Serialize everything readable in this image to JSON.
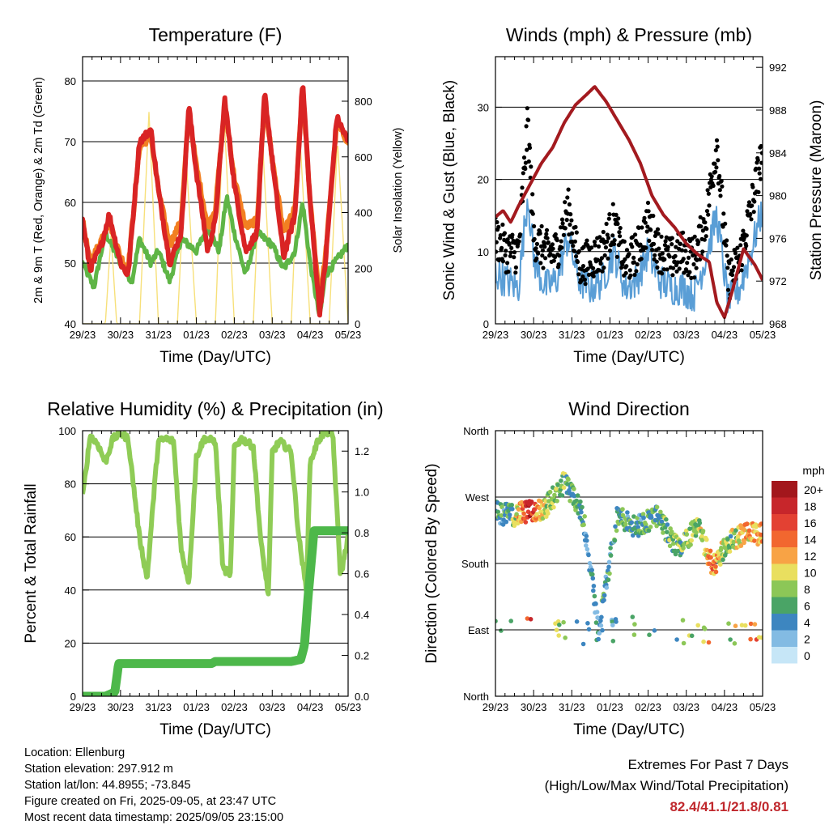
{
  "info": {
    "location": "Location: Ellenburg",
    "elevation": "Station elevation: 297.912 m",
    "latlon": "Station lat/lon: 44.8955; -73.845",
    "created": "Figure created on Fri, 2025-09-05, at 23:47 UTC",
    "latest": "Most recent data timestamp: 2025/09/05 23:15:00"
  },
  "extremes": {
    "title": "Extremes For Past 7 Days",
    "subtitle": "(High/Low/Max Wind/Total Precipitation)",
    "values": "82.4/41.1/21.8/0.81"
  },
  "colors": {
    "temp2m": "#d92424",
    "temp9m": "#f28022",
    "dewpoint": "#5fb546",
    "solar": "#f7e07a",
    "wind": "#5a9ed6",
    "gust": "#000000",
    "pressure": "#a31a1f",
    "rh": "#8fcc56",
    "precip": "#4db84a"
  },
  "chart_data": [
    {
      "id": "temperature",
      "type": "line",
      "title": "Temperature (F)",
      "xlabel": "Time (Day/UTC)",
      "ylabel": "2m & 9m T (Red, Orange) & 2m Td (Green)",
      "y2label": "Solar Insolation (Yellow)",
      "x_ticks": [
        "29/23",
        "30/23",
        "31/23",
        "01/23",
        "02/23",
        "03/23",
        "04/23",
        "05/23"
      ],
      "ylim": [
        40,
        84
      ],
      "y_ticks": [
        40,
        50,
        60,
        70,
        80
      ],
      "y2lim": [
        0,
        960
      ],
      "y2_ticks": [
        0,
        200,
        400,
        600,
        800
      ],
      "grid_y": [
        50,
        60,
        70,
        80
      ],
      "series": [
        {
          "key": "temp2m",
          "days": [
            0,
            0.2,
            0.5,
            0.7,
            1,
            1.2,
            1.5,
            1.8,
            2,
            2.3,
            2.6,
            2.8,
            3,
            3.3,
            3.5,
            3.75,
            4,
            4.3,
            4.6,
            4.8,
            5,
            5.3,
            5.6,
            5.8,
            6,
            6.25,
            6.4,
            6.7,
            7
          ],
          "values": [
            57,
            49,
            53,
            58,
            50,
            48,
            70,
            72,
            62,
            50,
            55,
            76,
            65,
            52,
            57,
            77,
            63,
            52,
            55,
            78,
            67,
            51,
            58,
            80,
            60,
            42,
            50,
            74,
            70
          ]
        },
        {
          "key": "temp9m",
          "days": [
            0,
            0.2,
            0.5,
            0.7,
            1,
            1.2,
            1.5,
            1.8,
            2,
            2.3,
            2.6,
            2.8,
            3,
            3.3,
            3.5,
            3.75,
            4,
            4.3,
            4.6,
            4.8,
            5,
            5.3,
            5.6,
            5.8,
            6,
            6.25,
            6.4,
            6.7,
            7
          ],
          "values": [
            57,
            50,
            54,
            57,
            51,
            49,
            69,
            71,
            62,
            53,
            57,
            75,
            66,
            56,
            59,
            76,
            64,
            56,
            57,
            77,
            67,
            55,
            59,
            79,
            60,
            44,
            51,
            73,
            70
          ]
        },
        {
          "key": "dewpoint",
          "days": [
            0,
            0.3,
            0.6,
            1,
            1.3,
            1.5,
            1.8,
            2,
            2.3,
            2.6,
            3,
            3.3,
            3.6,
            3.8,
            4,
            4.3,
            4.6,
            5,
            5.3,
            5.6,
            5.8,
            6,
            6.25,
            6.4,
            7
          ],
          "values": [
            50,
            46,
            55,
            50,
            47,
            54,
            50,
            52,
            47,
            54,
            52,
            56,
            52,
            61,
            55,
            48,
            55,
            53,
            49,
            52,
            60,
            50,
            41,
            48,
            53
          ]
        },
        {
          "key": "solar",
          "axis": "y2",
          "days": [
            0,
            0.6,
            0.75,
            0.9,
            1.0,
            1.5,
            1.75,
            2.0,
            2.5,
            2.72,
            3.0,
            3.5,
            3.72,
            4.0,
            4.5,
            4.72,
            5.0,
            5.5,
            5.72,
            6.0,
            6.5,
            6.72,
            7.0
          ],
          "values": [
            0,
            0,
            320,
            0,
            0,
            0,
            760,
            0,
            0,
            620,
            0,
            0,
            780,
            0,
            0,
            720,
            0,
            0,
            700,
            0,
            0,
            660,
            0
          ]
        }
      ]
    },
    {
      "id": "winds",
      "type": "scatter",
      "title": "Winds (mph) & Pressure (mb)",
      "xlabel": "Time (Day/UTC)",
      "ylabel": "Sonic Wind & Gust (Blue, Black)",
      "y2label": "Station Pressure (Maroon)",
      "x_ticks": [
        "29/23",
        "30/23",
        "31/23",
        "01/23",
        "02/23",
        "03/23",
        "04/23",
        "05/23"
      ],
      "ylim": [
        0,
        37
      ],
      "y_ticks": [
        0,
        10,
        20,
        30
      ],
      "y2lim": [
        968,
        993
      ],
      "y2_ticks": [
        968,
        972,
        976,
        980,
        984,
        988,
        992
      ],
      "grid_y": [
        10,
        20,
        30
      ],
      "series": [
        {
          "key": "pressure",
          "axis": "y2",
          "days": [
            0,
            0.2,
            0.4,
            0.6,
            0.9,
            1.2,
            1.5,
            1.8,
            2.1,
            2.4,
            2.6,
            2.9,
            3.2,
            3.5,
            3.8,
            4.1,
            4.4,
            4.7,
            5.0,
            5.3,
            5.6,
            5.8,
            6.0,
            6.2,
            6.5,
            6.8,
            7.0
          ],
          "values": [
            978,
            978.6,
            977.5,
            979,
            981,
            983,
            984.5,
            986.8,
            988.5,
            989.5,
            990.2,
            988.8,
            987,
            985.2,
            983,
            980,
            978.2,
            977,
            975.5,
            974.5,
            973.8,
            970,
            968.6,
            971,
            975,
            973.5,
            972.1
          ]
        },
        {
          "key": "wind",
          "days": [
            0,
            0.3,
            0.6,
            0.85,
            1.0,
            1.3,
            1.6,
            1.9,
            2.2,
            2.5,
            2.8,
            3.1,
            3.4,
            3.7,
            4.0,
            4.3,
            4.6,
            4.9,
            5.2,
            5.5,
            5.8,
            6.1,
            6.4,
            6.7,
            7.0
          ],
          "values": [
            7,
            6,
            5,
            18,
            9,
            5,
            6,
            12,
            6,
            5,
            6,
            10,
            5,
            6,
            10,
            6,
            5,
            5,
            4,
            9,
            15,
            3,
            5,
            10,
            16
          ]
        },
        {
          "key": "gust",
          "days": [
            0,
            0.3,
            0.6,
            0.85,
            1.0,
            1.3,
            1.6,
            1.9,
            2.2,
            2.5,
            2.8,
            3.1,
            3.4,
            3.7,
            4.0,
            4.3,
            4.6,
            4.9,
            5.2,
            5.5,
            5.8,
            6.1,
            6.4,
            6.7,
            7.0
          ],
          "values": [
            12,
            10,
            10,
            28,
            12,
            10,
            10,
            16,
            8,
            9,
            10,
            14,
            8,
            10,
            14,
            10,
            9,
            10,
            9,
            14,
            25,
            6,
            9,
            16,
            24
          ]
        }
      ]
    },
    {
      "id": "humidity",
      "type": "line",
      "title": "Relative Humidity (%) & Precipitation (in)",
      "xlabel": "Time (Day/UTC)",
      "ylabel": "Percent & Total Rainfall",
      "x_ticks": [
        "29/23",
        "30/23",
        "31/23",
        "01/23",
        "02/23",
        "03/23",
        "04/23",
        "05/23"
      ],
      "ylim": [
        0,
        100
      ],
      "y_ticks": [
        0,
        20,
        40,
        60,
        80,
        100
      ],
      "y2lim": [
        0,
        1.3
      ],
      "y2_ticks": [
        "0.0",
        "0.2",
        "0.4",
        "0.6",
        "0.8",
        "1.0",
        "1.2"
      ],
      "grid_y": [
        20,
        40,
        60,
        80
      ],
      "series": [
        {
          "key": "rh",
          "days": [
            0,
            0.2,
            0.4,
            0.6,
            0.8,
            1.0,
            1.2,
            1.5,
            1.7,
            1.9,
            2.0,
            2.2,
            2.4,
            2.6,
            2.8,
            3.0,
            3.2,
            3.5,
            3.7,
            3.9,
            4.0,
            4.2,
            4.5,
            4.7,
            4.9,
            5.0,
            5.2,
            5.5,
            5.7,
            5.9,
            6.0,
            6.2,
            6.4,
            6.6,
            6.8,
            7.0
          ],
          "values": [
            75,
            98,
            95,
            88,
            97,
            99,
            97,
            60,
            44,
            80,
            96,
            97,
            96,
            55,
            43,
            90,
            97,
            96,
            48,
            46,
            94,
            97,
            94,
            58,
            38,
            92,
            96,
            92,
            60,
            40,
            88,
            96,
            100,
            98,
            45,
            60
          ]
        },
        {
          "key": "precip",
          "axis": "y2",
          "days": [
            0,
            0.6,
            0.85,
            0.95,
            1.2,
            3.4,
            3.5,
            5.5,
            5.75,
            5.85,
            5.95,
            6.0,
            6.1,
            7.0
          ],
          "values": [
            0,
            0,
            0.02,
            0.16,
            0.16,
            0.16,
            0.17,
            0.17,
            0.18,
            0.25,
            0.5,
            0.6,
            0.81,
            0.81
          ]
        }
      ]
    },
    {
      "id": "wind-direction",
      "type": "scatter",
      "title": "Wind Direction",
      "xlabel": "Time (Day/UTC)",
      "ylabel": "Direction (Colored By Speed)",
      "x_ticks": [
        "29/23",
        "30/23",
        "31/23",
        "01/23",
        "02/23",
        "03/23",
        "04/23",
        "05/23"
      ],
      "ylim": [
        0,
        360
      ],
      "y_tick_labels": [
        "North",
        "East",
        "South",
        "West",
        "North"
      ],
      "y_tick_values": [
        0,
        90,
        180,
        270,
        360
      ],
      "grid_y": [
        90,
        180,
        270
      ],
      "legend": {
        "title": "mph",
        "placement": "right",
        "labels": [
          "20+",
          "18",
          "16",
          "14",
          "12",
          "10",
          "8",
          "6",
          "4",
          "2",
          "0"
        ],
        "colors": [
          "#a3171c",
          "#c7262b",
          "#e34133",
          "#f2672f",
          "#f8a345",
          "#e9df5f",
          "#8cc757",
          "#4aa466",
          "#3d86c0",
          "#83bbe3",
          "#c6e6f7"
        ]
      },
      "series": [
        {
          "key": "direction",
          "days": [
            0,
            0.4,
            0.9,
            1.3,
            1.8,
            2.3,
            2.7,
            3.2,
            3.7,
            4.2,
            4.8,
            5.3,
            5.7,
            6.1,
            6.5,
            7.0
          ],
          "values": [
            250,
            245,
            250,
            255,
            290,
            245,
            90,
            245,
            230,
            245,
            200,
            230,
            175,
            210,
            220,
            220
          ],
          "speeds": [
            5,
            6,
            17,
            8,
            7,
            5,
            4,
            6,
            5,
            6,
            7,
            8,
            14,
            7,
            11,
            13
          ]
        }
      ]
    }
  ]
}
